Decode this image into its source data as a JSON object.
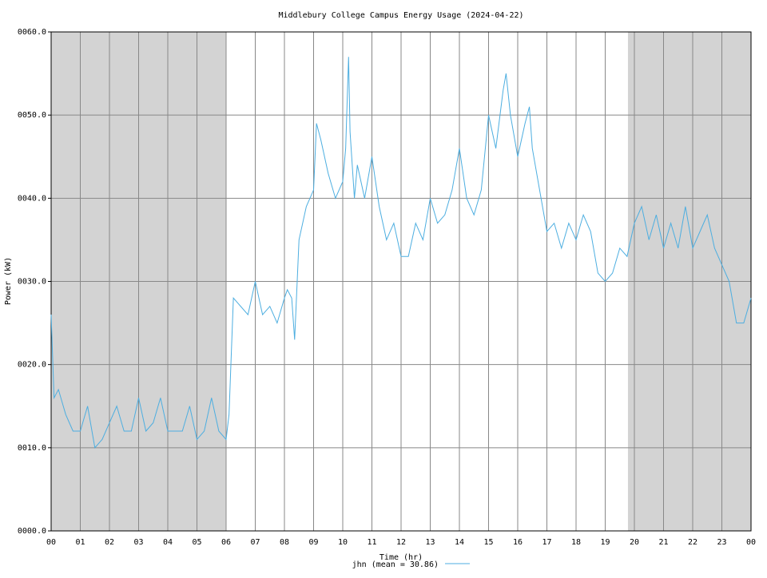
{
  "chart_data": {
    "type": "line",
    "title": "Middlebury College Campus Energy Usage (2024-04-22)",
    "x_label": "Time (hr)",
    "y_label": "Power (kW)",
    "xlim": [
      0,
      24
    ],
    "ylim": [
      0,
      60
    ],
    "xticks": [
      {
        "value": 0,
        "label": "00"
      },
      {
        "value": 1,
        "label": "01"
      },
      {
        "value": 2,
        "label": "02"
      },
      {
        "value": 3,
        "label": "03"
      },
      {
        "value": 4,
        "label": "04"
      },
      {
        "value": 5,
        "label": "05"
      },
      {
        "value": 6,
        "label": "06"
      },
      {
        "value": 7,
        "label": "07"
      },
      {
        "value": 8,
        "label": "08"
      },
      {
        "value": 9,
        "label": "09"
      },
      {
        "value": 10,
        "label": "10"
      },
      {
        "value": 11,
        "label": "11"
      },
      {
        "value": 12,
        "label": "12"
      },
      {
        "value": 13,
        "label": "13"
      },
      {
        "value": 14,
        "label": "14"
      },
      {
        "value": 15,
        "label": "15"
      },
      {
        "value": 16,
        "label": "16"
      },
      {
        "value": 17,
        "label": "17"
      },
      {
        "value": 18,
        "label": "18"
      },
      {
        "value": 19,
        "label": "19"
      },
      {
        "value": 20,
        "label": "20"
      },
      {
        "value": 21,
        "label": "21"
      },
      {
        "value": 22,
        "label": "22"
      },
      {
        "value": 23,
        "label": "23"
      },
      {
        "value": 24,
        "label": "00"
      }
    ],
    "yticks": [
      {
        "value": 0,
        "label": "0000.0"
      },
      {
        "value": 10,
        "label": "0010.0"
      },
      {
        "value": 20,
        "label": "0020.0"
      },
      {
        "value": 30,
        "label": "0030.0"
      },
      {
        "value": 40,
        "label": "0040.0"
      },
      {
        "value": 50,
        "label": "0050.0"
      },
      {
        "value": 60,
        "label": "0060.0"
      }
    ],
    "grid": true,
    "shaded_xranges": [
      [
        0,
        6
      ],
      [
        19.78,
        24
      ]
    ],
    "x": [
      0,
      0.1,
      0.25,
      0.5,
      0.75,
      1,
      1.25,
      1.5,
      1.75,
      2,
      2.25,
      2.5,
      2.75,
      3,
      3.25,
      3.5,
      3.75,
      4,
      4.25,
      4.5,
      4.75,
      5,
      5.25,
      5.5,
      5.75,
      6,
      6.1,
      6.25,
      6.5,
      6.75,
      7,
      7.25,
      7.5,
      7.75,
      8,
      8.1,
      8.25,
      8.35,
      8.5,
      8.75,
      9,
      9.1,
      9.25,
      9.5,
      9.75,
      10,
      10.1,
      10.2,
      10.25,
      10.4,
      10.5,
      10.75,
      11,
      11.25,
      11.5,
      11.75,
      12,
      12.25,
      12.5,
      12.75,
      13,
      13.25,
      13.5,
      13.75,
      14,
      14.25,
      14.5,
      14.75,
      15,
      15.25,
      15.5,
      15.6,
      15.75,
      16,
      16.25,
      16.4,
      16.5,
      16.75,
      17,
      17.25,
      17.5,
      17.75,
      18,
      18.25,
      18.5,
      18.75,
      19,
      19.25,
      19.5,
      19.75,
      20,
      20.25,
      20.5,
      20.75,
      21,
      21.25,
      21.5,
      21.75,
      22,
      22.25,
      22.5,
      22.75,
      23,
      23.25,
      23.5,
      23.75,
      24
    ],
    "series": [
      {
        "name": "jhn (mean = 30.86)",
        "color": "#4daee0",
        "values": [
          26,
          16,
          17,
          14,
          12,
          12,
          15,
          10,
          11,
          13,
          15,
          12,
          12,
          16,
          12,
          13,
          16,
          12,
          12,
          12,
          15,
          11,
          12,
          16,
          12,
          11,
          14,
          28,
          27,
          26,
          30,
          26,
          27,
          25,
          28,
          29,
          28,
          23,
          35,
          39,
          41,
          49,
          47,
          43,
          40,
          42,
          46,
          57,
          48,
          40,
          44,
          40,
          45,
          39,
          35,
          37,
          33,
          33,
          37,
          35,
          40,
          37,
          38,
          41,
          46,
          40,
          38,
          41,
          50,
          46,
          53,
          55,
          50,
          45,
          49,
          51,
          46,
          41,
          36,
          37,
          34,
          37,
          35,
          38,
          36,
          31,
          30,
          31,
          34,
          33,
          37,
          39,
          35,
          38,
          34,
          37,
          34,
          39,
          34,
          36,
          38,
          34,
          32,
          30,
          25,
          25,
          28
        ]
      }
    ]
  }
}
